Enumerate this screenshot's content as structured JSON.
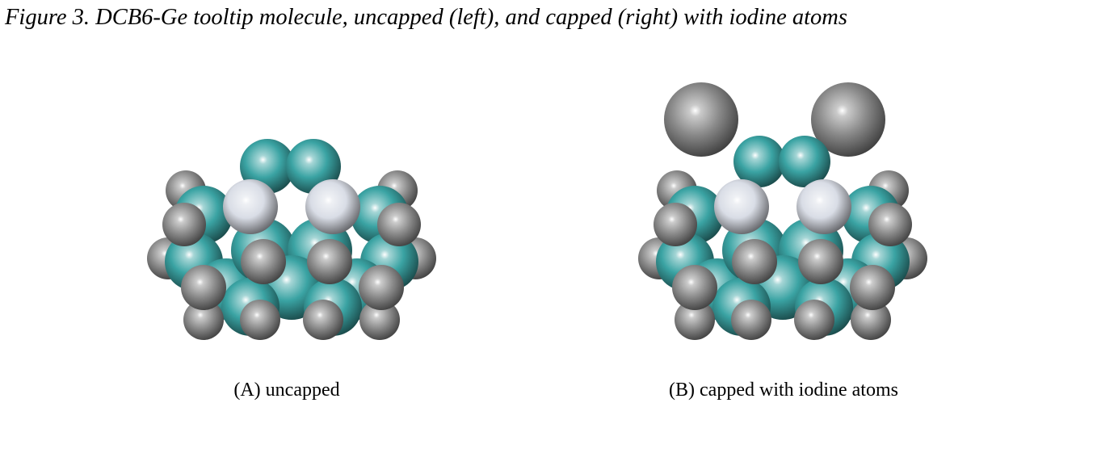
{
  "figure": {
    "title": "Figure 3. DCB6-Ge tooltip molecule, uncapped (left), and capped (right) with iodine atoms",
    "panels": [
      {
        "caption": "(A) uncapped"
      },
      {
        "caption": "(B) capped with iodine atoms"
      }
    ]
  },
  "colors": {
    "background": "#ffffff",
    "carbon": "#3aa3a3",
    "hydrogen": "#8e8e8e",
    "germanium": "#d9dde6",
    "iodine": "#8a8a8a"
  }
}
